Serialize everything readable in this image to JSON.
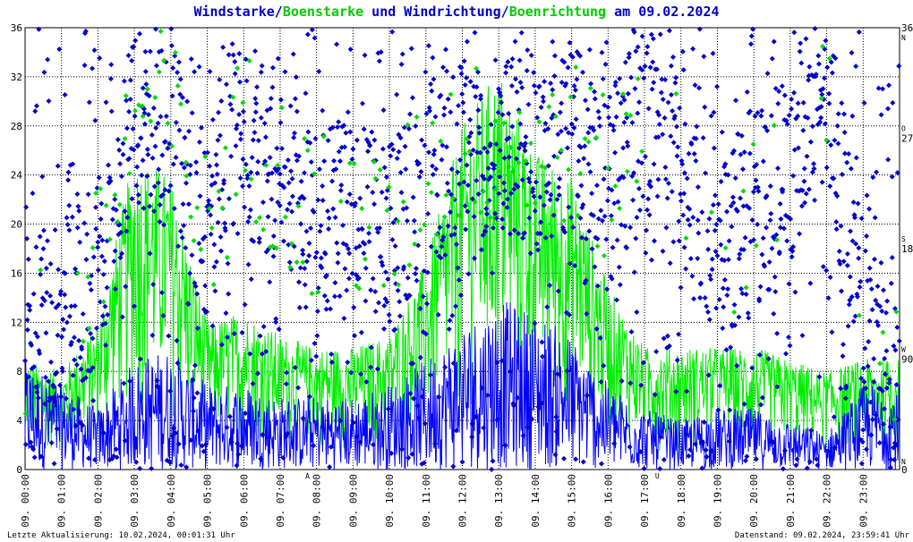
{
  "title": {
    "part1": "Windstarke",
    "sep1": "/",
    "part2": "Boenstarke",
    "part3": " und ",
    "part4": "Windrichtung",
    "sep2": "/",
    "part5": "Boenrichtung",
    "part6": " am 09.02.2024"
  },
  "colors": {
    "wind": "#0000ff",
    "gust": "#00ee00",
    "wind_dir": "#0000cc",
    "gust_dir": "#00dd00",
    "grid": "#000000",
    "marker": "#cc0000"
  },
  "footer": {
    "left": "Letzte Aktualisierung: 10.02.2024, 00:01:31 Uhr",
    "right": "Datenstand: 09.02.2024, 23:59:41 Uhr"
  },
  "x_markers": [
    "A",
    "U"
  ],
  "compass": [
    "N",
    "W",
    "S",
    "O",
    "N"
  ],
  "chart_data": {
    "type": "line",
    "xlabel": "",
    "ylabel": "",
    "x_tick_labels": [
      "09. 00:00",
      "09. 01:00",
      "09. 02:00",
      "09. 03:00",
      "09. 04:00",
      "09. 05:00",
      "09. 06:00",
      "09. 07:00",
      "09. 08:00",
      "09. 09:00",
      "09. 10:00",
      "09. 11:00",
      "09. 12:00",
      "09. 13:00",
      "09. 14:00",
      "09. 15:00",
      "09. 16:00",
      "09. 17:00",
      "09. 18:00",
      "09. 19:00",
      "09. 20:00",
      "09. 21:00",
      "09. 22:00",
      "09. 23:00"
    ],
    "ylim": [
      0,
      36
    ],
    "y_ticks": [
      0,
      4,
      8,
      12,
      16,
      20,
      24,
      28,
      32,
      36
    ],
    "y2lim": [
      0,
      360
    ],
    "y2_ticks": [
      0,
      90,
      180,
      270,
      360
    ],
    "grid": true,
    "series": [
      {
        "name": "Windstarke",
        "kind": "line",
        "axis": "left"
      },
      {
        "name": "Boenstarke",
        "kind": "line",
        "axis": "left"
      },
      {
        "name": "Windrichtung",
        "kind": "scatter",
        "axis": "right"
      },
      {
        "name": "Boenrichtung",
        "kind": "scatter",
        "axis": "right"
      }
    ],
    "hourly_wind_mean": [
      4.5,
      3.5,
      2.5,
      4.5,
      5.0,
      3.5,
      3.5,
      3.0,
      3.0,
      3.0,
      3.5,
      4.5,
      6.0,
      7.0,
      6.5,
      5.5,
      3.5,
      2.5,
      2.0,
      2.5,
      2.5,
      2.0,
      1.5,
      3.5
    ],
    "hourly_gust_max": [
      9,
      8,
      12,
      26,
      24,
      12,
      13,
      11,
      10,
      10,
      11,
      17,
      28,
      33,
      26,
      24,
      15,
      10,
      10,
      10,
      10,
      9,
      8,
      9
    ],
    "hourly_dir_mean": [
      60,
      140,
      160,
      290,
      290,
      190,
      280,
      240,
      200,
      210,
      180,
      250,
      260,
      270,
      260,
      270,
      230,
      290,
      250,
      160,
      210,
      250,
      320,
      100
    ],
    "markers": [
      {
        "label": "A",
        "time_hour": 7.75
      },
      {
        "label": "U",
        "time_hour": 17.35
      }
    ]
  }
}
